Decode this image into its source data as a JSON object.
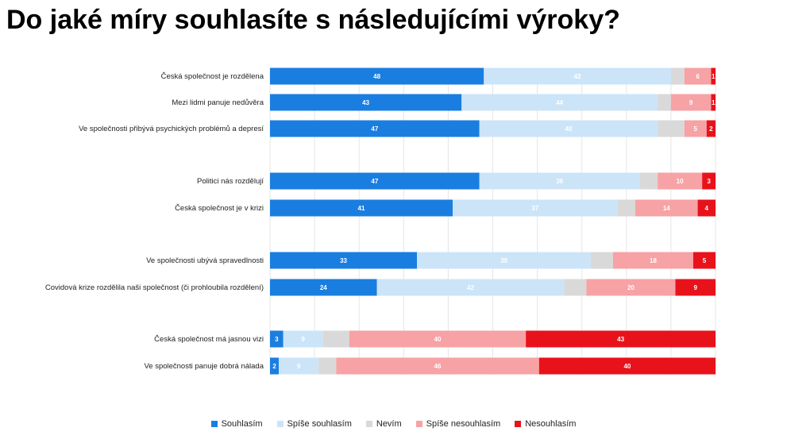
{
  "title": "Do jaké míry souhlasíte s následujícími výroky?",
  "chart_data": {
    "type": "bar",
    "orientation": "horizontal",
    "stacked": true,
    "stack_mode": "percent",
    "xlim": [
      0,
      100
    ],
    "grid": true,
    "legend_position": "bottom",
    "categories": [
      "Česká společnost je rozdělena",
      "Mezi lidmi panuje nedůvěra",
      "Ve společnosti přibývá psychických problémů a depresí",
      "Politici nás rozdělují",
      "Česká společnost je v krizi",
      "Ve společnosti ubývá spravedlnosti",
      "Covidová krize rozdělila naši společnost (či prohloubila rozdělení)",
      "Česká společnost má jasnou vizi",
      "Ve společnosti panuje dobrá nálada"
    ],
    "groups": [
      [
        0,
        1,
        2
      ],
      [
        3,
        4
      ],
      [
        5,
        6
      ],
      [
        7,
        8
      ]
    ],
    "series": [
      {
        "name": "Souhlasím",
        "color": "#1a7ee0",
        "label_color": "#ffffff",
        "values": [
          48,
          43,
          47,
          47,
          41,
          33,
          24,
          3,
          2
        ],
        "labels": [
          "48",
          "43",
          "47",
          "47",
          "41",
          "33",
          "24",
          "3",
          "2"
        ]
      },
      {
        "name": "Spíše souhlasím",
        "color": "#cce4f8",
        "label_color": "#ffffff",
        "values": [
          42,
          44,
          40,
          36,
          37,
          39,
          42,
          9,
          9
        ],
        "labels": [
          "42",
          "44",
          "40",
          "36",
          "37",
          "39",
          "42",
          "9",
          "9"
        ]
      },
      {
        "name": "Nevím",
        "color": "#d9d9d9",
        "label_color": "#ffffff",
        "values": [
          3,
          3,
          6,
          4,
          4,
          5,
          5,
          6,
          4
        ],
        "labels": [
          "",
          "",
          "",
          "",
          "",
          "",
          "",
          "",
          ""
        ]
      },
      {
        "name": "Spíše nesouhlasím",
        "color": "#f7a2a5",
        "label_color": "#ffffff",
        "values": [
          6,
          9,
          5,
          10,
          14,
          18,
          20,
          40,
          46
        ],
        "labels": [
          "6",
          "9",
          "5",
          "10",
          "14",
          "18",
          "20",
          "40",
          "46"
        ]
      },
      {
        "name": "Nesouhlasím",
        "color": "#e8121b",
        "label_color": "#ffffff",
        "values": [
          1,
          1,
          2,
          3,
          4,
          5,
          9,
          43,
          40
        ],
        "labels": [
          "1",
          "1",
          "2",
          "3",
          "4",
          "5",
          "9",
          "43",
          "40"
        ]
      }
    ]
  }
}
